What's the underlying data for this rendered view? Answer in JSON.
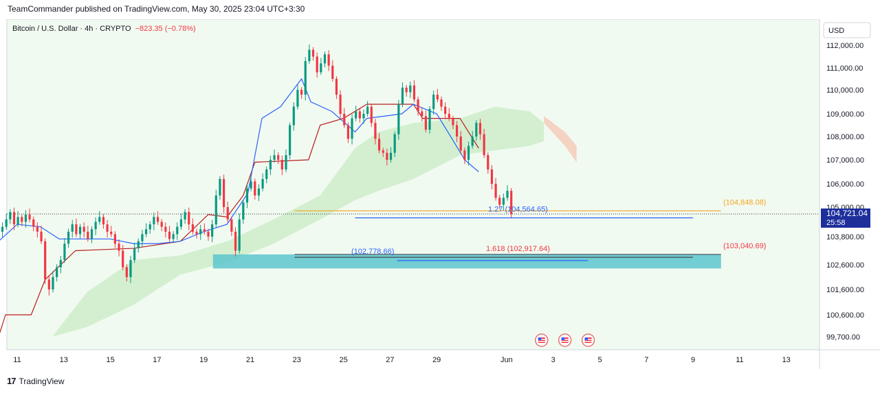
{
  "header": {
    "publisher_line": "TeamCommander published on TradingView.com, May 30, 2025 23:04 UTC+3:30"
  },
  "legend": {
    "symbol": "Bitcoin / U.S. Dollar · 4h · CRYPTO",
    "change": "−823.35 (−0.78%)"
  },
  "footer": {
    "brand": "TradingView",
    "logo_icon": "tradingview-logo-icon"
  },
  "colors": {
    "background": "#f1faf0",
    "up": "#089981",
    "down": "#f23645",
    "conversion": "#2962ff",
    "base": "#b71c1c",
    "cloud": "#c8ebc6",
    "orange_level": "#f5a623",
    "zone": "#5cc6cc",
    "price_tag": "#1e2f9c"
  },
  "chart_data": {
    "type": "candlestick",
    "currency": "USD",
    "price_ticks": [
      112000,
      111000,
      110000,
      109000,
      108000,
      107000,
      106000,
      105000,
      103800,
      102600,
      101600,
      100600,
      99700
    ],
    "price_tick_labels": [
      "112,000.00",
      "111,000.00",
      "110,000.00",
      "109,000.00",
      "108,000.00",
      "107,000.00",
      "106,000.00",
      "105,000.00",
      "103,800.00",
      "102,600.00",
      "101,600.00",
      "100,600.00",
      "99,700.00"
    ],
    "x_ticks": [
      {
        "label": "11",
        "day": 11
      },
      {
        "label": "13",
        "day": 13
      },
      {
        "label": "15",
        "day": 15
      },
      {
        "label": "17",
        "day": 17
      },
      {
        "label": "19",
        "day": 19
      },
      {
        "label": "21",
        "day": 21
      },
      {
        "label": "23",
        "day": 23
      },
      {
        "label": "25",
        "day": 25
      },
      {
        "label": "27",
        "day": 27
      },
      {
        "label": "29",
        "day": 29
      },
      {
        "label": "Jun",
        "day": 32
      },
      {
        "label": "3",
        "day": 34
      },
      {
        "label": "5",
        "day": 36
      },
      {
        "label": "7",
        "day": 38
      },
      {
        "label": "9",
        "day": 40
      },
      {
        "label": "11",
        "day": 42
      },
      {
        "label": "13",
        "day": 44
      }
    ],
    "last_price": {
      "label": "104,721.04",
      "countdown": "25:58",
      "value": 104721.04
    },
    "candles_day_start": 10.2,
    "candles_close": [
      104000,
      104200,
      104500,
      104800,
      104300,
      104600,
      104400,
      104700,
      104500,
      104200,
      104000,
      103600,
      102000,
      101600,
      102100,
      102500,
      102800,
      103500,
      104000,
      104300,
      103900,
      104200,
      104000,
      103700,
      104100,
      104400,
      104600,
      104300,
      104000,
      103900,
      103500,
      103200,
      102500,
      102100,
      102800,
      103300,
      103600,
      103900,
      104100,
      104300,
      104600,
      104400,
      104200,
      104000,
      103700,
      103900,
      104200,
      104500,
      104800,
      104300,
      104000,
      103900,
      104100,
      104000,
      103800,
      104300,
      105500,
      106200,
      105000,
      104500,
      104000,
      103200,
      104500,
      105200,
      105800,
      106100,
      105500,
      105800,
      106200,
      106600,
      107000,
      107200,
      107000,
      106600,
      107200,
      108500,
      109300,
      110000,
      109800,
      111300,
      111800,
      111500,
      110800,
      111200,
      111600,
      111100,
      110500,
      109800,
      109000,
      108500,
      107900,
      108800,
      109100,
      108800,
      109000,
      109300,
      108600,
      107900,
      107400,
      107300,
      107000,
      107300,
      108100,
      109400,
      110100,
      109900,
      110200,
      109600,
      109100,
      108900,
      108300,
      109200,
      109800,
      109600,
      109300,
      109000,
      108800,
      108500,
      108000,
      107400,
      107000,
      107600,
      108000,
      108600,
      108100,
      107200,
      106600,
      106000,
      105400,
      105100,
      105400,
      105700,
      104721.04
    ],
    "conversion_line": [
      {
        "day": 10.2,
        "v": 103600
      },
      {
        "day": 11.0,
        "v": 104300
      },
      {
        "day": 12.0,
        "v": 104200
      },
      {
        "day": 12.8,
        "v": 103700
      },
      {
        "day": 14.0,
        "v": 103700
      },
      {
        "day": 15.0,
        "v": 103700
      },
      {
        "day": 16.0,
        "v": 103500
      },
      {
        "day": 17.0,
        "v": 103500
      },
      {
        "day": 18.0,
        "v": 103600
      },
      {
        "day": 19.0,
        "v": 104000
      },
      {
        "day": 20.0,
        "v": 104300
      },
      {
        "day": 20.9,
        "v": 105600
      },
      {
        "day": 21.5,
        "v": 108800
      },
      {
        "day": 22.3,
        "v": 109300
      },
      {
        "day": 23.2,
        "v": 110500
      },
      {
        "day": 23.6,
        "v": 109500
      },
      {
        "day": 24.5,
        "v": 109100
      },
      {
        "day": 25.5,
        "v": 108200
      },
      {
        "day": 26.0,
        "v": 108800
      },
      {
        "day": 27.5,
        "v": 109000
      },
      {
        "day": 28.0,
        "v": 109400
      },
      {
        "day": 29.0,
        "v": 109000
      },
      {
        "day": 29.6,
        "v": 108000
      },
      {
        "day": 30.2,
        "v": 107000
      },
      {
        "day": 30.8,
        "v": 106500
      }
    ],
    "base_line": [
      {
        "day": 10.2,
        "v": 99700
      },
      {
        "day": 10.5,
        "v": 100600
      },
      {
        "day": 11.6,
        "v": 100600
      },
      {
        "day": 12.2,
        "v": 102000
      },
      {
        "day": 13.5,
        "v": 103200
      },
      {
        "day": 16.0,
        "v": 103300
      },
      {
        "day": 18.0,
        "v": 103600
      },
      {
        "day": 19.2,
        "v": 104700
      },
      {
        "day": 20.0,
        "v": 104600
      },
      {
        "day": 20.7,
        "v": 105500
      },
      {
        "day": 21.2,
        "v": 106900
      },
      {
        "day": 23.5,
        "v": 107000
      },
      {
        "day": 24.0,
        "v": 108500
      },
      {
        "day": 25.0,
        "v": 108800
      },
      {
        "day": 26.0,
        "v": 109400
      },
      {
        "day": 28.0,
        "v": 109400
      },
      {
        "day": 28.4,
        "v": 108800
      },
      {
        "day": 30.0,
        "v": 108800
      },
      {
        "day": 30.8,
        "v": 107500
      }
    ],
    "cloud_upper": [
      {
        "day": 12.5,
        "v": 99700
      },
      {
        "day": 14.0,
        "v": 101500
      },
      {
        "day": 16.0,
        "v": 102800
      },
      {
        "day": 18.0,
        "v": 103000
      },
      {
        "day": 20.0,
        "v": 103600
      },
      {
        "day": 22.0,
        "v": 104500
      },
      {
        "day": 24.0,
        "v": 105500
      },
      {
        "day": 25.5,
        "v": 107500
      },
      {
        "day": 26.5,
        "v": 108200
      },
      {
        "day": 28.0,
        "v": 108600
      },
      {
        "day": 30.0,
        "v": 108800
      },
      {
        "day": 31.5,
        "v": 109300
      },
      {
        "day": 33.0,
        "v": 109100
      },
      {
        "day": 33.6,
        "v": 108600
      }
    ],
    "cloud_lower": [
      {
        "day": 12.5,
        "v": 99700
      },
      {
        "day": 14.0,
        "v": 100100
      },
      {
        "day": 16.0,
        "v": 101000
      },
      {
        "day": 18.0,
        "v": 102200
      },
      {
        "day": 20.0,
        "v": 102700
      },
      {
        "day": 22.0,
        "v": 103500
      },
      {
        "day": 24.0,
        "v": 104500
      },
      {
        "day": 25.5,
        "v": 105300
      },
      {
        "day": 26.5,
        "v": 105700
      },
      {
        "day": 28.0,
        "v": 106200
      },
      {
        "day": 30.0,
        "v": 107200
      },
      {
        "day": 31.5,
        "v": 107400
      },
      {
        "day": 33.0,
        "v": 107600
      },
      {
        "day": 33.6,
        "v": 107800
      }
    ],
    "cloud_red_upper": [
      {
        "day": 33.6,
        "v": 108900
      },
      {
        "day": 34.5,
        "v": 108200
      },
      {
        "day": 35.0,
        "v": 107600
      }
    ],
    "cloud_red_lower": [
      {
        "day": 33.6,
        "v": 108600
      },
      {
        "day": 34.5,
        "v": 107600
      },
      {
        "day": 35.0,
        "v": 106900
      }
    ],
    "levels": [
      {
        "name": "orange-level",
        "value": 104848.08,
        "label": "(104,848.08)",
        "from_day": 22.9,
        "to_day": 41.2,
        "color": "#f5a623",
        "label_color": "#f5a623"
      },
      {
        "name": "blue-level",
        "value": 104564.65,
        "label": "1.27 (104,564.65)",
        "from_day": 25.5,
        "to_day": 40.0,
        "color": "#2962ff",
        "label_color": "#2962ff"
      },
      {
        "name": "red-level",
        "value": 103040.69,
        "label": "(103,040.69)",
        "from_day": 22.9,
        "to_day": 41.2,
        "color": "#434651",
        "label_color": "#f23645"
      },
      {
        "name": "fib-level",
        "value": 102917.64,
        "label": "1.618 (102,917.64)",
        "from_day": 22.9,
        "to_day": 40.0,
        "color": "#434651",
        "label_color": "#f23645"
      },
      {
        "name": "blue-level-low",
        "value": 102778.66,
        "label": "(102,778.66)",
        "from_day": 27.3,
        "to_day": 35.5,
        "color": "#2962ff",
        "label_color": "#2962ff"
      }
    ],
    "zone": {
      "from_day": 19.4,
      "to_day": 41.2,
      "top": 103040.69,
      "bottom": 102450
    },
    "event_markers": [
      {
        "day": 33.5
      },
      {
        "day": 34.5
      },
      {
        "day": 35.5
      }
    ],
    "event_icon": "us-flag-icon"
  }
}
